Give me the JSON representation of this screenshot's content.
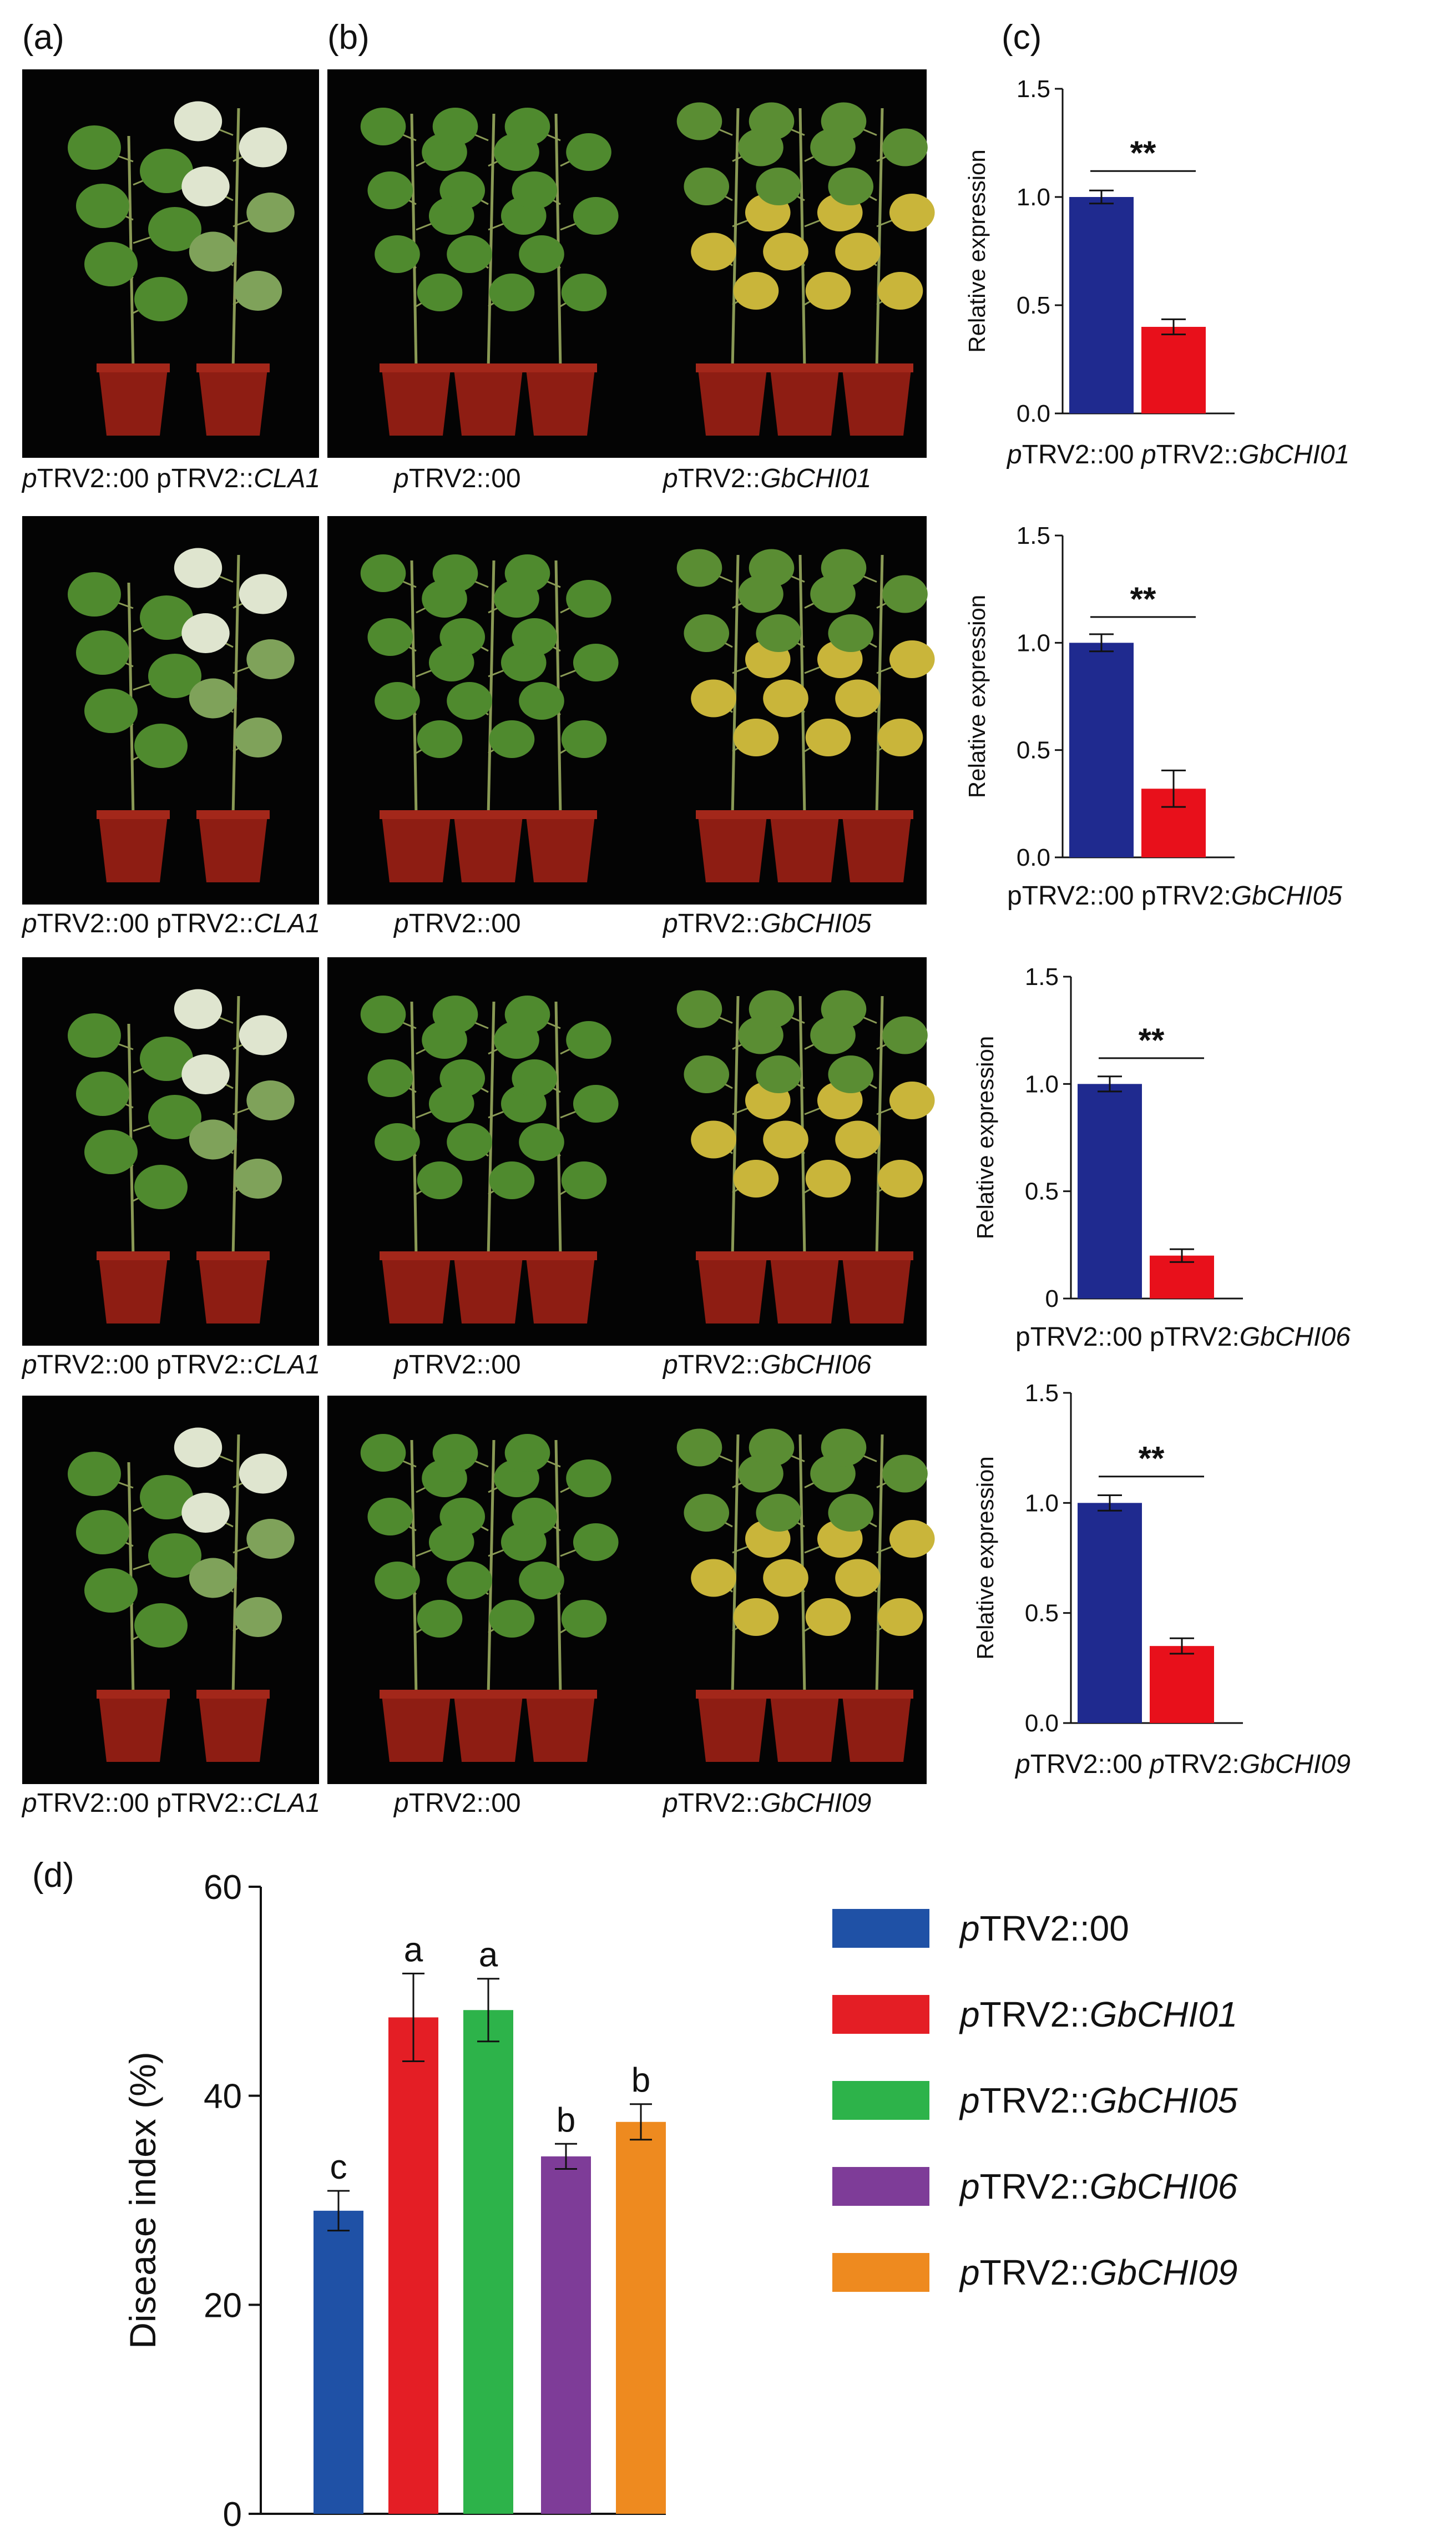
{
  "figure": {
    "panel_labels": {
      "a": "(a)",
      "b": "(b)",
      "c": "(c)",
      "d": "(d)"
    },
    "photo_rows": [
      {
        "caption_a": [
          "p",
          "TRV2::00",
          "pTRV2::",
          "CLA1"
        ],
        "caption_b_left": [
          "p",
          "TRV2::00"
        ],
        "caption_b_right": [
          "p",
          "TRV2::",
          "GbCHI01"
        ]
      },
      {
        "caption_a": [
          "p",
          "TRV2::00",
          "pTRV2::",
          "CLA1"
        ],
        "caption_b_left": [
          "p",
          "TRV2::00"
        ],
        "caption_b_right": [
          "p",
          "TRV2::",
          "GbCHI05"
        ]
      },
      {
        "caption_a": [
          "p",
          "TRV2::00",
          "pTRV2::",
          "CLA1"
        ],
        "caption_b_left": [
          "p",
          "TRV2::00"
        ],
        "caption_b_right": [
          "p",
          "TRV2::",
          "GbCHI06"
        ]
      },
      {
        "caption_a": [
          "p",
          "TRV2::00",
          "pTRV2::",
          "CLA1"
        ],
        "caption_b_left": [
          "p",
          "TRV2::00"
        ],
        "caption_b_right": [
          "p",
          "TRV2::",
          "GbCHI09"
        ]
      }
    ]
  },
  "colors": {
    "navy": "#1f2a8f",
    "red": "#e8101b",
    "blue": "#1f51a6",
    "bright_red": "#e41e25",
    "green": "#2db34a",
    "purple": "#7e3c98",
    "orange": "#ee8a1f",
    "photo_bg": "#040404",
    "leaf": "#4f8a2e",
    "pot": "#8e1d13"
  },
  "chart_data": [
    {
      "type": "bar",
      "ylabel": "Relative expression",
      "ylim": [
        0,
        1.5
      ],
      "yticks": [
        "0.0",
        "0.5",
        "1.0",
        "1.5"
      ],
      "categories": [
        [
          "p",
          "TRV2::00"
        ],
        [
          "p",
          "TRV2::",
          "GbCHI01"
        ]
      ],
      "values": [
        1.0,
        0.4
      ],
      "errors": [
        0.03,
        0.035
      ],
      "significance": "**"
    },
    {
      "type": "bar",
      "ylabel": "Relative expression",
      "ylim": [
        0,
        1.5
      ],
      "yticks": [
        "0.0",
        "0.5",
        "1.0",
        "1.5"
      ],
      "categories": [
        [
          "",
          "pTRV2::00"
        ],
        [
          "",
          "pTRV2:",
          "GbCHI05"
        ]
      ],
      "values": [
        1.0,
        0.32
      ],
      "errors": [
        0.04,
        0.085
      ],
      "significance": "**"
    },
    {
      "type": "bar",
      "ylabel": "Relative expression",
      "ylim": [
        0,
        1.5
      ],
      "yticks": [
        "0",
        "0.5",
        "1.0",
        "1.5"
      ],
      "categories": [
        [
          "",
          "pTRV2::00"
        ],
        [
          "",
          "pTRV2:",
          "GbCHI06"
        ]
      ],
      "values": [
        1.0,
        0.2
      ],
      "errors": [
        0.035,
        0.03
      ],
      "significance": "**"
    },
    {
      "type": "bar",
      "ylabel": "Relative expression",
      "ylim": [
        0,
        1.5
      ],
      "yticks": [
        "0.0",
        "0.5",
        "1.0",
        "1.5"
      ],
      "categories": [
        [
          "p",
          "TRV2::00"
        ],
        [
          "p",
          "TRV2:",
          "GbCHI09"
        ]
      ],
      "values": [
        1.0,
        0.35
      ],
      "errors": [
        0.035,
        0.035
      ],
      "significance": "**"
    },
    {
      "type": "bar",
      "ylabel": "Disease index (%)",
      "ylim": [
        0,
        60
      ],
      "yticks": [
        "0",
        "20",
        "40",
        "60"
      ],
      "categories": [
        "pTRV2::00",
        "pTRV2::GbCHI01",
        "pTRV2::GbCHI05",
        "pTRV2::GbCHI06",
        "pTRV2::GbCHI09"
      ],
      "values": [
        29,
        47.5,
        48.2,
        34.2,
        37.5
      ],
      "errors": [
        1.9,
        4.2,
        3,
        1.2,
        1.7
      ],
      "letters": [
        "c",
        "a",
        "a",
        "b",
        "b"
      ],
      "legend": [
        {
          "p": "p",
          "rest": "TRV2::00",
          "gene": ""
        },
        {
          "p": "p",
          "rest": "TRV2::",
          "gene": "GbCHI01"
        },
        {
          "p": "p",
          "rest": "TRV2::",
          "gene": "GbCHI05"
        },
        {
          "p": "p",
          "rest": "TRV2::",
          "gene": "GbCHI06"
        },
        {
          "p": "p",
          "rest": "TRV2::",
          "gene": "GbCHI09"
        }
      ]
    }
  ]
}
